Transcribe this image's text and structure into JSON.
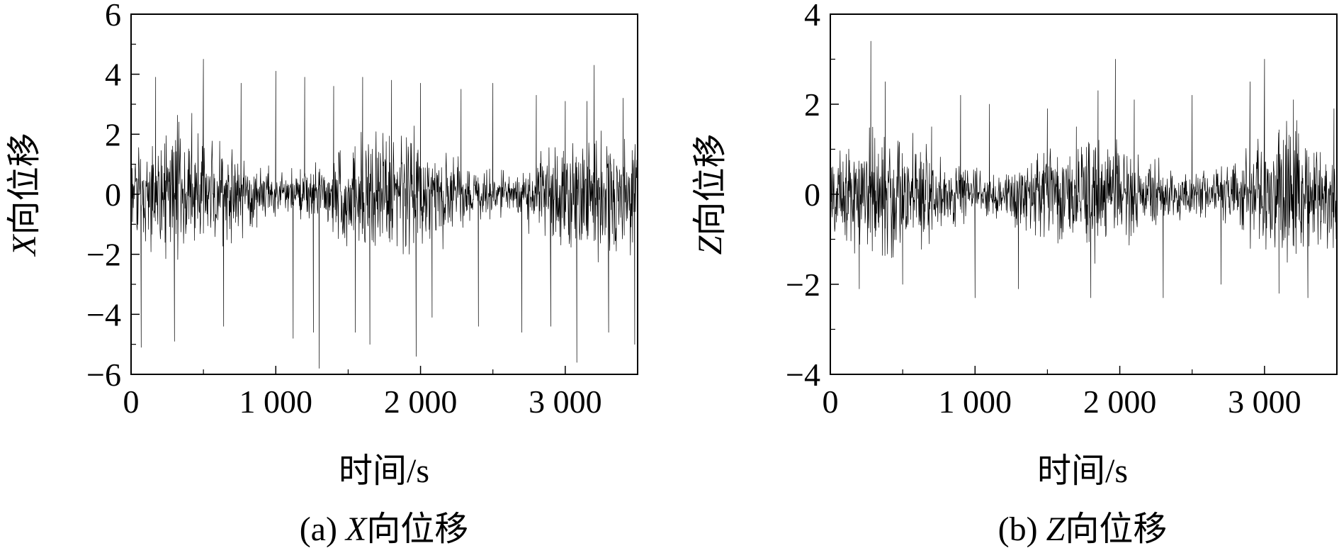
{
  "chart_data": [
    {
      "type": "line",
      "caption_prefix": "(a) ",
      "caption_var": "X",
      "caption_suffix": "向位移",
      "xlabel": "时间/s",
      "ylabel_var": "X",
      "ylabel_suffix": "向位移",
      "xlim": [
        0,
        3500
      ],
      "ylim": [
        -6,
        6
      ],
      "x_ticks": [
        0,
        1000,
        2000,
        3000
      ],
      "x_tick_labels": [
        "0",
        "1 000",
        "2 000",
        "3 000"
      ],
      "y_ticks": [
        -6,
        -4,
        -2,
        0,
        2,
        4,
        6
      ],
      "y_tick_labels": [
        "−6",
        "−4",
        "−2",
        "0",
        "2",
        "4",
        "6"
      ],
      "series": [
        {
          "color": "#000000",
          "x": [
            0,
            70,
            170,
            300,
            420,
            500,
            640,
            760,
            870,
            1000,
            1120,
            1200,
            1260,
            1300,
            1400,
            1550,
            1600,
            1650,
            1800,
            1970,
            2000,
            2080,
            2280,
            2400,
            2500,
            2700,
            2800,
            2900,
            3000,
            3080,
            3150,
            3200,
            3300,
            3400,
            3480
          ],
          "values": [
            2.8,
            -5.1,
            3.9,
            -4.9,
            2.7,
            4.5,
            -4.4,
            3.7,
            -1.1,
            4.1,
            -4.8,
            3.9,
            -4.6,
            -5.8,
            3.6,
            -4.6,
            3.9,
            -5.0,
            3.8,
            -5.4,
            3.7,
            -4.1,
            3.5,
            -4.4,
            3.7,
            -4.6,
            3.3,
            -4.4,
            3.1,
            -5.6,
            3.1,
            4.3,
            -4.6,
            3.2,
            -5.0
          ]
        }
      ]
    },
    {
      "type": "line",
      "caption_prefix": "(b) ",
      "caption_var": "Z",
      "caption_suffix": "向位移",
      "xlabel": "时间/s",
      "ylabel_var": "Z",
      "ylabel_suffix": "向位移",
      "xlim": [
        0,
        3500
      ],
      "ylim": [
        -4,
        4
      ],
      "x_ticks": [
        0,
        1000,
        2000,
        3000
      ],
      "x_tick_labels": [
        "0",
        "1 000",
        "2 000",
        "3 000"
      ],
      "y_ticks": [
        -4,
        -2,
        0,
        2,
        4
      ],
      "y_tick_labels": [
        "−4",
        "−2",
        "0",
        "2",
        "4"
      ],
      "series": [
        {
          "color": "#000000",
          "x": [
            0,
            200,
            280,
            380,
            500,
            700,
            900,
            1000,
            1100,
            1300,
            1500,
            1700,
            1800,
            1850,
            1970,
            2100,
            2300,
            2500,
            2700,
            2900,
            3000,
            3100,
            3200,
            3300,
            3480
          ],
          "values": [
            1.1,
            -2.1,
            3.4,
            2.5,
            -2.0,
            1.5,
            2.2,
            -2.3,
            2.0,
            -2.1,
            1.9,
            1.5,
            -2.3,
            2.3,
            3.0,
            2.1,
            -2.3,
            2.2,
            -2.0,
            2.5,
            3.0,
            -2.2,
            2.1,
            -2.3,
            1.9
          ]
        }
      ]
    }
  ]
}
